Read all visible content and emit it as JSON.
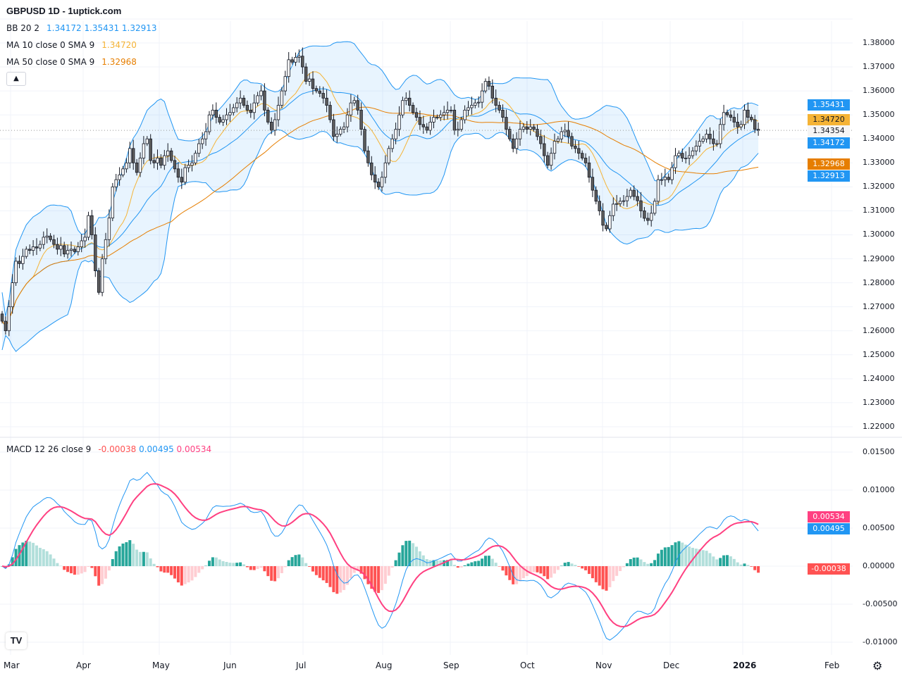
{
  "header": {
    "title": "GBPUSD 1D - 1uptick.com"
  },
  "legend": {
    "bb": {
      "label": "BB 20 2",
      "basis": "1.34172",
      "upper": "1.35431",
      "lower": "1.32913"
    },
    "ma10": {
      "label": "MA 10 close 0 SMA 9",
      "value": "1.34720"
    },
    "ma50": {
      "label": "MA 50 close 0 SMA 9",
      "value": "1.32968"
    },
    "macd": {
      "label": "MACD 12 26 close 9",
      "hist": "-0.00038",
      "macd": "0.00495",
      "signal": "0.00534"
    },
    "collapse_icon": "chevron-up-icon"
  },
  "price_axis": {
    "ticks": [
      "1.22000",
      "1.23000",
      "1.24000",
      "1.25000",
      "1.26000",
      "1.27000",
      "1.28000",
      "1.29000",
      "1.30000",
      "1.31000",
      "1.32000",
      "1.33000",
      "1.34000",
      "1.35000",
      "1.36000",
      "1.37000",
      "1.38000"
    ],
    "badges": [
      {
        "value": "1.35431",
        "color": "#2196f3"
      },
      {
        "value": "1.34720",
        "color": "#f5b335",
        "text_color": "#131722"
      },
      {
        "value": "1.34354",
        "color": "#f5f5f5",
        "text_color": "#131722"
      },
      {
        "value": "1.34172",
        "color": "#2196f3"
      },
      {
        "value": "1.32968",
        "color": "#e67e00"
      },
      {
        "value": "1.32913",
        "color": "#2196f3"
      }
    ]
  },
  "macd_axis": {
    "ticks": [
      "0.01500",
      "0.01000",
      "0.00500",
      "0.00000",
      "-0.00500",
      "-0.01000"
    ],
    "badges": [
      {
        "value": "0.00534",
        "color": "#ff4081"
      },
      {
        "value": "0.00495",
        "color": "#2196f3"
      },
      {
        "value": "-0.00038",
        "color": "#ff5252"
      }
    ]
  },
  "time_axis": {
    "labels": [
      "Mar",
      "Apr",
      "May",
      "Jun",
      "Jul",
      "Aug",
      "Sep",
      "Oct",
      "Nov",
      "Dec",
      "2026",
      "Feb"
    ]
  },
  "colors": {
    "up": "#ffffff",
    "down": "#5d5d5d",
    "bb": "#2196f3",
    "ma10": "#f5b335",
    "ma50": "#e67e00",
    "macd": "#2196f3",
    "signal": "#ff4081",
    "hist_pos_strong": "#26a69a",
    "hist_pos_weak": "#b2dfdb",
    "hist_neg_strong": "#ff5252",
    "hist_neg_weak": "#ffcdd2"
  },
  "logo_text": "TV",
  "settings_icon": "gear-icon",
  "chart_data": {
    "type": "candlestick",
    "symbol": "GBPUSD",
    "interval": "1D",
    "ylim": [
      1.22,
      1.385
    ],
    "macd_ylim": [
      -0.0105,
      0.0155
    ],
    "grid": true,
    "indicators": [
      "BB 20 2",
      "MA 10",
      "MA 50",
      "MACD 12 26 9"
    ],
    "last_close": 1.34354,
    "closes": [
      1.264,
      1.26,
      1.27,
      1.28,
      1.289,
      1.288,
      1.291,
      1.294,
      1.2935,
      1.295,
      1.2945,
      1.296,
      1.299,
      1.2995,
      1.298,
      1.296,
      1.294,
      1.2955,
      1.292,
      1.2935,
      1.294,
      1.293,
      1.295,
      1.2975,
      1.299,
      1.308,
      1.3,
      1.285,
      1.276,
      1.29,
      1.298,
      1.307,
      1.32,
      1.323,
      1.325,
      1.3275,
      1.33,
      1.336,
      1.33,
      1.326,
      1.332,
      1.338,
      1.34,
      1.331,
      1.33,
      1.332,
      1.329,
      1.333,
      1.335,
      1.331,
      1.3275,
      1.324,
      1.322,
      1.328,
      1.329,
      1.33,
      1.334,
      1.338,
      1.34,
      1.343,
      1.35,
      1.352,
      1.349,
      1.347,
      1.348,
      1.35,
      1.351,
      1.353,
      1.355,
      1.357,
      1.354,
      1.352,
      1.351,
      1.355,
      1.358,
      1.36,
      1.352,
      1.347,
      1.3436,
      1.348,
      1.354,
      1.36,
      1.366,
      1.373,
      1.372,
      1.374,
      1.3745,
      1.37,
      1.364,
      1.365,
      1.361,
      1.36,
      1.359,
      1.357,
      1.354,
      1.348,
      1.341,
      1.342,
      1.344,
      1.345,
      1.35,
      1.355,
      1.356,
      1.352,
      1.344,
      1.335,
      1.33,
      1.325,
      1.322,
      1.32,
      1.324,
      1.33,
      1.336,
      1.34,
      1.344,
      1.35,
      1.356,
      1.357,
      1.354,
      1.351,
      1.349,
      1.346,
      1.345,
      1.3436,
      1.347,
      1.349,
      1.349,
      1.35,
      1.351,
      1.352,
      1.352,
      1.3436,
      1.344,
      1.348,
      1.352,
      1.353,
      1.354,
      1.355,
      1.3553,
      1.36,
      1.364,
      1.362,
      1.357,
      1.354,
      1.352,
      1.349,
      1.344,
      1.34,
      1.336,
      1.34,
      1.344,
      1.345,
      1.344,
      1.345,
      1.344,
      1.341,
      1.338,
      1.333,
      1.329,
      1.334,
      1.339,
      1.34,
      1.343,
      1.3436,
      1.341,
      1.337,
      1.336,
      1.334,
      1.332,
      1.33,
      1.324,
      1.3186,
      1.314,
      1.31,
      1.304,
      1.3025,
      1.308,
      1.3128,
      1.313,
      1.314,
      1.3142,
      1.316,
      1.3186,
      1.316,
      1.3142,
      1.31,
      1.3069,
      1.306,
      1.309,
      1.314,
      1.323,
      1.323,
      1.324,
      1.323,
      1.328,
      1.333,
      1.334,
      1.332,
      1.332,
      1.333,
      1.335,
      1.337,
      1.339,
      1.34,
      1.342,
      1.34,
      1.338,
      1.338,
      1.346,
      1.351,
      1.35,
      1.349,
      1.347,
      1.345,
      1.346,
      1.352,
      1.349,
      1.348,
      1.344,
      1.34354
    ]
  }
}
